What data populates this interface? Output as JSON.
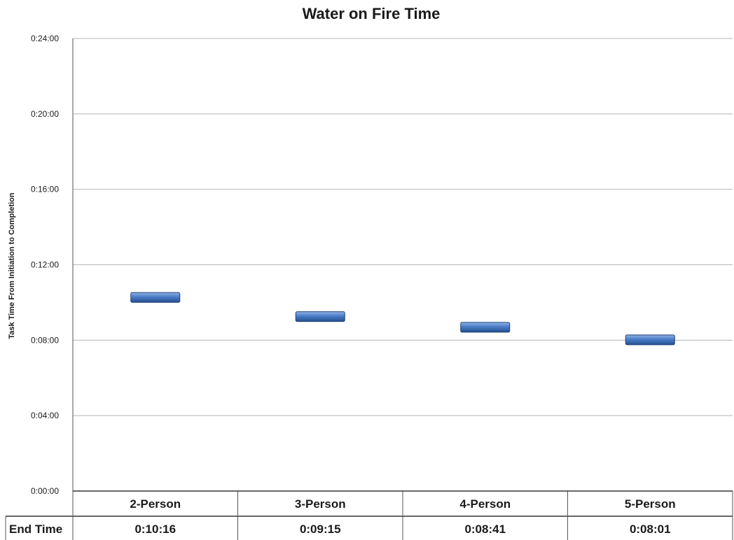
{
  "chart_data": {
    "type": "scatter",
    "title": "Water on Fire Time",
    "xlabel": "",
    "ylabel": "Task Time From Initiation to Completion",
    "y_unit": "minutes",
    "ylim": [
      0,
      24
    ],
    "ytick_values": [
      0,
      4,
      8,
      12,
      16,
      20,
      24
    ],
    "ytick_labels": [
      "0:00:00",
      "0:04:00",
      "0:08:00",
      "0:12:00",
      "0:16:00",
      "0:20:00",
      "0:24:00"
    ],
    "categories": [
      "2-Person",
      "3-Person",
      "4-Person",
      "5-Person"
    ],
    "grid": true,
    "marker": "horizontal-bar",
    "series": [
      {
        "values": [
          10.267,
          9.25,
          8.683,
          8.017
        ],
        "color": "#3f6fb8"
      }
    ],
    "table": {
      "row_header": "End Time",
      "cells": [
        "0:10:16",
        "0:09:15",
        "0:08:41",
        "0:08:01"
      ]
    }
  },
  "colors": {
    "marker_fill": "#3f6fb8",
    "marker_edge": "#1f3f73",
    "grid": "#b5b5b5",
    "axis": "#555555"
  }
}
